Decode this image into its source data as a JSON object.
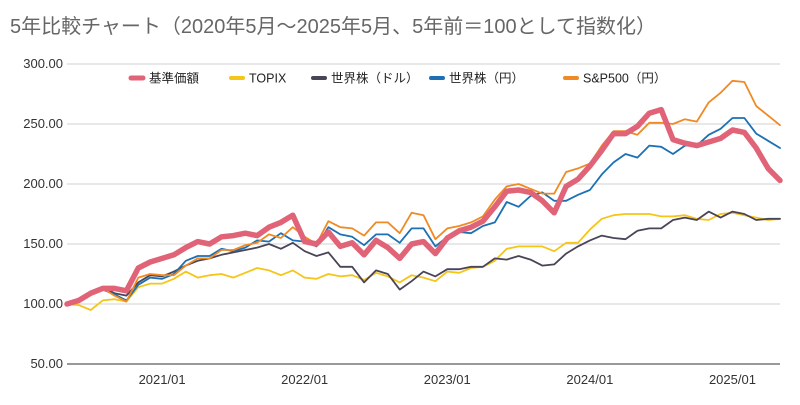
{
  "chart_data": {
    "type": "line",
    "title": "5年比較チャート（2020年5月〜2025年5月、5年前＝100として指数化）",
    "xlabel": "",
    "ylabel": "",
    "ylim": [
      50,
      300
    ],
    "y_ticks": [
      "50.00",
      "100.00",
      "150.00",
      "200.00",
      "250.00",
      "300.00"
    ],
    "x_ticks": [
      {
        "label": "2021/01",
        "x": 8
      },
      {
        "label": "2022/01",
        "x": 20
      },
      {
        "label": "2023/01",
        "x": 32
      },
      {
        "label": "2024/01",
        "x": 44
      },
      {
        "label": "2025/01",
        "x": 56
      }
    ],
    "grid": true,
    "legend_position": "top",
    "x": [
      0,
      1,
      2,
      3,
      4,
      5,
      6,
      7,
      8,
      9,
      10,
      11,
      12,
      13,
      14,
      15,
      16,
      17,
      18,
      19,
      20,
      21,
      22,
      23,
      24,
      25,
      26,
      27,
      28,
      29,
      30,
      31,
      32,
      33,
      34,
      35,
      36,
      37,
      38,
      39,
      40,
      41,
      42,
      43,
      44,
      45,
      46,
      47,
      48,
      49,
      50,
      51,
      52,
      53,
      54,
      55,
      56,
      57,
      58,
      59,
      60
    ],
    "series": [
      {
        "name": "基準価額",
        "color": "#e06377",
        "width": 5.5,
        "values": [
          100,
          103,
          109,
          113,
          113,
          111,
          130,
          135,
          138,
          141,
          147,
          152,
          150,
          156,
          157,
          159,
          157,
          164,
          168,
          174,
          152,
          150,
          160,
          148,
          151,
          141,
          153,
          147,
          138,
          150,
          152,
          142,
          155,
          161,
          164,
          169,
          181,
          194,
          195,
          193,
          186,
          176,
          198,
          204,
          215,
          228,
          242,
          242,
          248,
          259,
          262,
          237,
          234,
          232,
          235,
          238,
          245,
          243,
          230,
          213,
          203
        ]
      },
      {
        "name": "TOPIX",
        "color": "#f5c518",
        "width": 1.8,
        "values": [
          100,
          99,
          95,
          103,
          104,
          102,
          114,
          117,
          117,
          121,
          127,
          122,
          124,
          125,
          122,
          126,
          130,
          128,
          124,
          128,
          122,
          121,
          125,
          123,
          124,
          120,
          126,
          123,
          118,
          124,
          122,
          119,
          127,
          126,
          130,
          131,
          136,
          146,
          148,
          148,
          148,
          144,
          151,
          151,
          162,
          171,
          174,
          175,
          175,
          175,
          173,
          173,
          174,
          171,
          170,
          175,
          176,
          174,
          172,
          170,
          171
        ]
      },
      {
        "name": "世界株（ドル）",
        "color": "#4a4458",
        "width": 1.8,
        "values": [
          100,
          104,
          110,
          114,
          109,
          107,
          118,
          124,
          123,
          127,
          132,
          136,
          138,
          141,
          143,
          145,
          147,
          150,
          146,
          151,
          144,
          140,
          143,
          131,
          131,
          118,
          128,
          125,
          112,
          119,
          127,
          123,
          129,
          129,
          131,
          131,
          138,
          137,
          140,
          137,
          132,
          133,
          142,
          148,
          153,
          157,
          155,
          154,
          161,
          163,
          163,
          170,
          172,
          170,
          177,
          172,
          177,
          175,
          170,
          171,
          171
        ]
      },
      {
        "name": "世界株（円）",
        "color": "#1c70b3",
        "width": 1.8,
        "values": [
          100,
          103,
          108,
          112,
          108,
          103,
          116,
          122,
          121,
          125,
          136,
          140,
          140,
          146,
          144,
          147,
          153,
          152,
          159,
          153,
          152,
          148,
          164,
          158,
          156,
          149,
          158,
          158,
          151,
          163,
          163,
          148,
          156,
          160,
          159,
          165,
          168,
          185,
          181,
          190,
          193,
          186,
          186,
          191,
          195,
          208,
          218,
          225,
          222,
          232,
          231,
          225,
          232,
          232,
          241,
          246,
          255,
          255,
          242,
          236,
          230
        ]
      },
      {
        "name": "S&P500（円）",
        "color": "#f08a24",
        "width": 1.8,
        "values": [
          100,
          102,
          108,
          113,
          107,
          102,
          122,
          125,
          124,
          124,
          132,
          138,
          138,
          145,
          145,
          149,
          151,
          158,
          155,
          164,
          156,
          150,
          169,
          164,
          163,
          157,
          168,
          168,
          159,
          176,
          174,
          154,
          163,
          165,
          168,
          173,
          187,
          198,
          200,
          196,
          192,
          192,
          210,
          213,
          217,
          232,
          244,
          244,
          241,
          251,
          251,
          250,
          254,
          252,
          268,
          276,
          286,
          285,
          265,
          257,
          249
        ]
      }
    ]
  }
}
